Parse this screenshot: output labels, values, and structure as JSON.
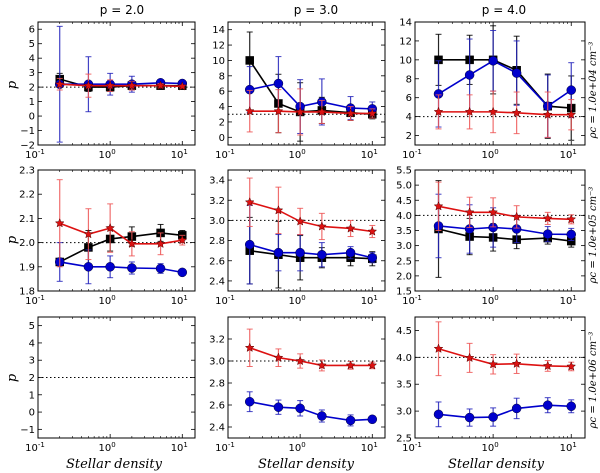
{
  "chart_data": {
    "type": "line",
    "layout": "3x3 grid",
    "column_titles": [
      "p = 2.0",
      "p = 3.0",
      "p = 4.0"
    ],
    "row_labels": [
      "ρc = 1.0e+04 cm⁻³",
      "ρc = 1.0e+05 cm⁻³",
      "ρc = 1.0e+06 cm⁻³"
    ],
    "xlabel": "Stellar density",
    "ylabel": "p",
    "xscale": "log",
    "x": [
      0.2,
      0.5,
      1.0,
      2.0,
      5.0,
      10.0
    ],
    "xlim": [
      0.1,
      15
    ],
    "xticks": [
      {
        "v": 0.1,
        "base": "10",
        "exp": "-1"
      },
      {
        "v": 1,
        "base": "10",
        "exp": "0"
      },
      {
        "v": 10,
        "base": "10",
        "exp": "1"
      }
    ],
    "series_styles": {
      "black": {
        "color": "#000000",
        "marker": "square"
      },
      "blue": {
        "color": "#0000cc",
        "marker": "circle"
      },
      "red": {
        "color": "#dd1111",
        "marker": "star"
      }
    },
    "panels": [
      {
        "row": 0,
        "col": 0,
        "reference": 2.0,
        "ylim": [
          -2,
          6.5
        ],
        "yticks": [
          -2,
          -1,
          0,
          1,
          2,
          3,
          4,
          5,
          6
        ],
        "series": [
          {
            "name": "black",
            "values": [
              2.55,
              2.0,
              2.0,
              2.1,
              2.1,
              2.1
            ],
            "err": [
              0.4,
              0.3,
              0.3,
              0.3,
              0.2,
              0.2
            ]
          },
          {
            "name": "blue",
            "values": [
              2.2,
              2.2,
              2.2,
              2.2,
              2.3,
              2.25
            ],
            "err": [
              4.0,
              1.9,
              0.75,
              0.55,
              0.2,
              0.15
            ]
          },
          {
            "name": "red",
            "values": [
              2.2,
              2.1,
              2.1,
              2.1,
              2.1,
              2.05
            ],
            "err": [
              0.4,
              0.8,
              0.4,
              0.3,
              0.15,
              0.1
            ]
          }
        ]
      },
      {
        "row": 0,
        "col": 1,
        "reference": 3.0,
        "ylim": [
          -1,
          15
        ],
        "yticks": [
          0,
          2,
          4,
          6,
          8,
          10,
          12,
          14
        ],
        "series": [
          {
            "name": "black",
            "values": [
              10.0,
              4.4,
              3.3,
              3.5,
              3.2,
              3.0
            ],
            "err": [
              3.7,
              3.8,
              3.8,
              1.7,
              1.0,
              0.6
            ]
          },
          {
            "name": "blue",
            "values": [
              6.2,
              7.0,
              4.0,
              4.6,
              3.8,
              3.7
            ],
            "err": [
              3.0,
              3.5,
              3.5,
              3.0,
              1.5,
              0.9
            ]
          },
          {
            "name": "red",
            "values": [
              3.4,
              3.4,
              3.3,
              3.3,
              3.1,
              3.1
            ],
            "err": [
              2.7,
              2.8,
              3.0,
              1.5,
              0.9,
              0.6
            ]
          }
        ]
      },
      {
        "row": 0,
        "col": 2,
        "reference": 4.0,
        "ylim": [
          1,
          14
        ],
        "yticks": [
          2,
          4,
          6,
          8,
          10,
          12,
          14
        ],
        "series": [
          {
            "name": "black",
            "values": [
              10.0,
              10.0,
              10.0,
              8.9,
              5.1,
              4.9
            ],
            "err": [
              2.7,
              2.6,
              3.6,
              3.6,
              3.4,
              3.4
            ]
          },
          {
            "name": "blue",
            "values": [
              6.4,
              8.4,
              9.9,
              8.6,
              5.1,
              6.8
            ],
            "err": [
              3.5,
              3.8,
              3.2,
              3.4,
              3.3,
              2.9
            ]
          },
          {
            "name": "red",
            "values": [
              4.5,
              4.5,
              4.5,
              4.4,
              4.2,
              4.2
            ],
            "err": [
              1.8,
              1.8,
              2.2,
              2.2,
              2.4,
              1.6
            ]
          }
        ]
      },
      {
        "row": 1,
        "col": 0,
        "reference": 2.0,
        "ylim": [
          1.8,
          2.3
        ],
        "yticks": [
          1.8,
          1.9,
          2.0,
          2.1,
          2.2,
          2.3
        ],
        "series": [
          {
            "name": "black",
            "values": [
              1.92,
              1.98,
              2.015,
              2.025,
              2.04,
              2.03
            ],
            "err": [
              0.0,
              0.07,
              0.05,
              0.04,
              0.035,
              0.02
            ]
          },
          {
            "name": "blue",
            "values": [
              1.92,
              1.9,
              1.9,
              1.895,
              1.893,
              1.877
            ],
            "err": [
              0.08,
              0.07,
              0.045,
              0.025,
              0.02,
              0.01
            ]
          },
          {
            "name": "red",
            "values": [
              2.08,
              2.035,
              2.06,
              1.995,
              1.995,
              2.01
            ],
            "err": [
              0.18,
              0.105,
              0.1,
              0.05,
              0.045,
              0.02
            ]
          }
        ]
      },
      {
        "row": 1,
        "col": 1,
        "reference": 3.0,
        "ylim": [
          2.3,
          3.5
        ],
        "yticks": [
          2.4,
          2.6,
          2.8,
          3.0,
          3.2,
          3.4
        ],
        "series": [
          {
            "name": "black",
            "values": [
              2.7,
              2.66,
              2.63,
              2.63,
              2.63,
              2.62
            ],
            "err": [
              0.33,
              0.33,
              0.22,
              0.1,
              0.08,
              0.07
            ]
          },
          {
            "name": "blue",
            "values": [
              2.76,
              2.68,
              2.68,
              2.66,
              2.68,
              2.63
            ],
            "err": [
              0.39,
              0.18,
              0.18,
              0.12,
              0.06,
              0.05
            ]
          },
          {
            "name": "red",
            "values": [
              3.18,
              3.1,
              2.99,
              2.94,
              2.92,
              2.89
            ],
            "err": [
              0.24,
              0.23,
              0.13,
              0.13,
              0.08,
              0.06
            ]
          }
        ]
      },
      {
        "row": 1,
        "col": 2,
        "reference": 4.0,
        "ylim": [
          1.5,
          5.5
        ],
        "yticks": [
          1.5,
          2.0,
          2.5,
          3.0,
          3.5,
          4.0,
          4.5,
          5.0,
          5.5
        ],
        "series": [
          {
            "name": "black",
            "values": [
              3.55,
              3.3,
              3.27,
              3.2,
              3.25,
              3.15
            ],
            "err": [
              1.6,
              0.6,
              0.45,
              0.3,
              0.2,
              0.2
            ]
          },
          {
            "name": "blue",
            "values": [
              3.65,
              3.55,
              3.6,
              3.55,
              3.38,
              3.37
            ],
            "err": [
              1.05,
              0.8,
              0.65,
              0.45,
              0.25,
              0.2
            ]
          },
          {
            "name": "red",
            "values": [
              4.3,
              4.1,
              4.1,
              3.95,
              3.9,
              3.87
            ],
            "err": [
              0.8,
              0.5,
              0.48,
              0.37,
              0.2,
              0.15
            ]
          }
        ]
      },
      {
        "row": 2,
        "col": 0,
        "reference": 2.0,
        "ylim": [
          -1.5,
          5.5
        ],
        "yticks": [
          -1,
          0,
          1,
          2,
          3,
          4,
          5
        ],
        "series": []
      },
      {
        "row": 2,
        "col": 1,
        "reference": 3.0,
        "ylim": [
          2.3,
          3.4
        ],
        "yticks": [
          2.4,
          2.6,
          2.8,
          3.0,
          3.2
        ],
        "series": [
          {
            "name": "blue",
            "values": [
              2.63,
              2.58,
              2.57,
              2.5,
              2.46,
              2.47
            ],
            "err": [
              0.09,
              0.065,
              0.07,
              0.055,
              0.05,
              0.03
            ]
          },
          {
            "name": "red",
            "values": [
              3.12,
              3.03,
              3.0,
              2.96,
              2.96,
              2.96
            ],
            "err": [
              0.17,
              0.08,
              0.065,
              0.05,
              0.035,
              0.03
            ]
          }
        ]
      },
      {
        "row": 2,
        "col": 2,
        "reference": 4.0,
        "ylim": [
          2.5,
          4.75
        ],
        "yticks": [
          2.5,
          3.0,
          3.5,
          4.0,
          4.5
        ],
        "series": [
          {
            "name": "blue",
            "values": [
              2.94,
              2.88,
              2.89,
              3.05,
              3.11,
              3.09
            ],
            "err": [
              0.23,
              0.16,
              0.17,
              0.19,
              0.14,
              0.12
            ]
          },
          {
            "name": "red",
            "values": [
              4.16,
              3.99,
              3.87,
              3.88,
              3.84,
              3.83
            ],
            "err": [
              0.5,
              0.27,
              0.18,
              0.18,
              0.1,
              0.08
            ]
          }
        ]
      }
    ]
  }
}
